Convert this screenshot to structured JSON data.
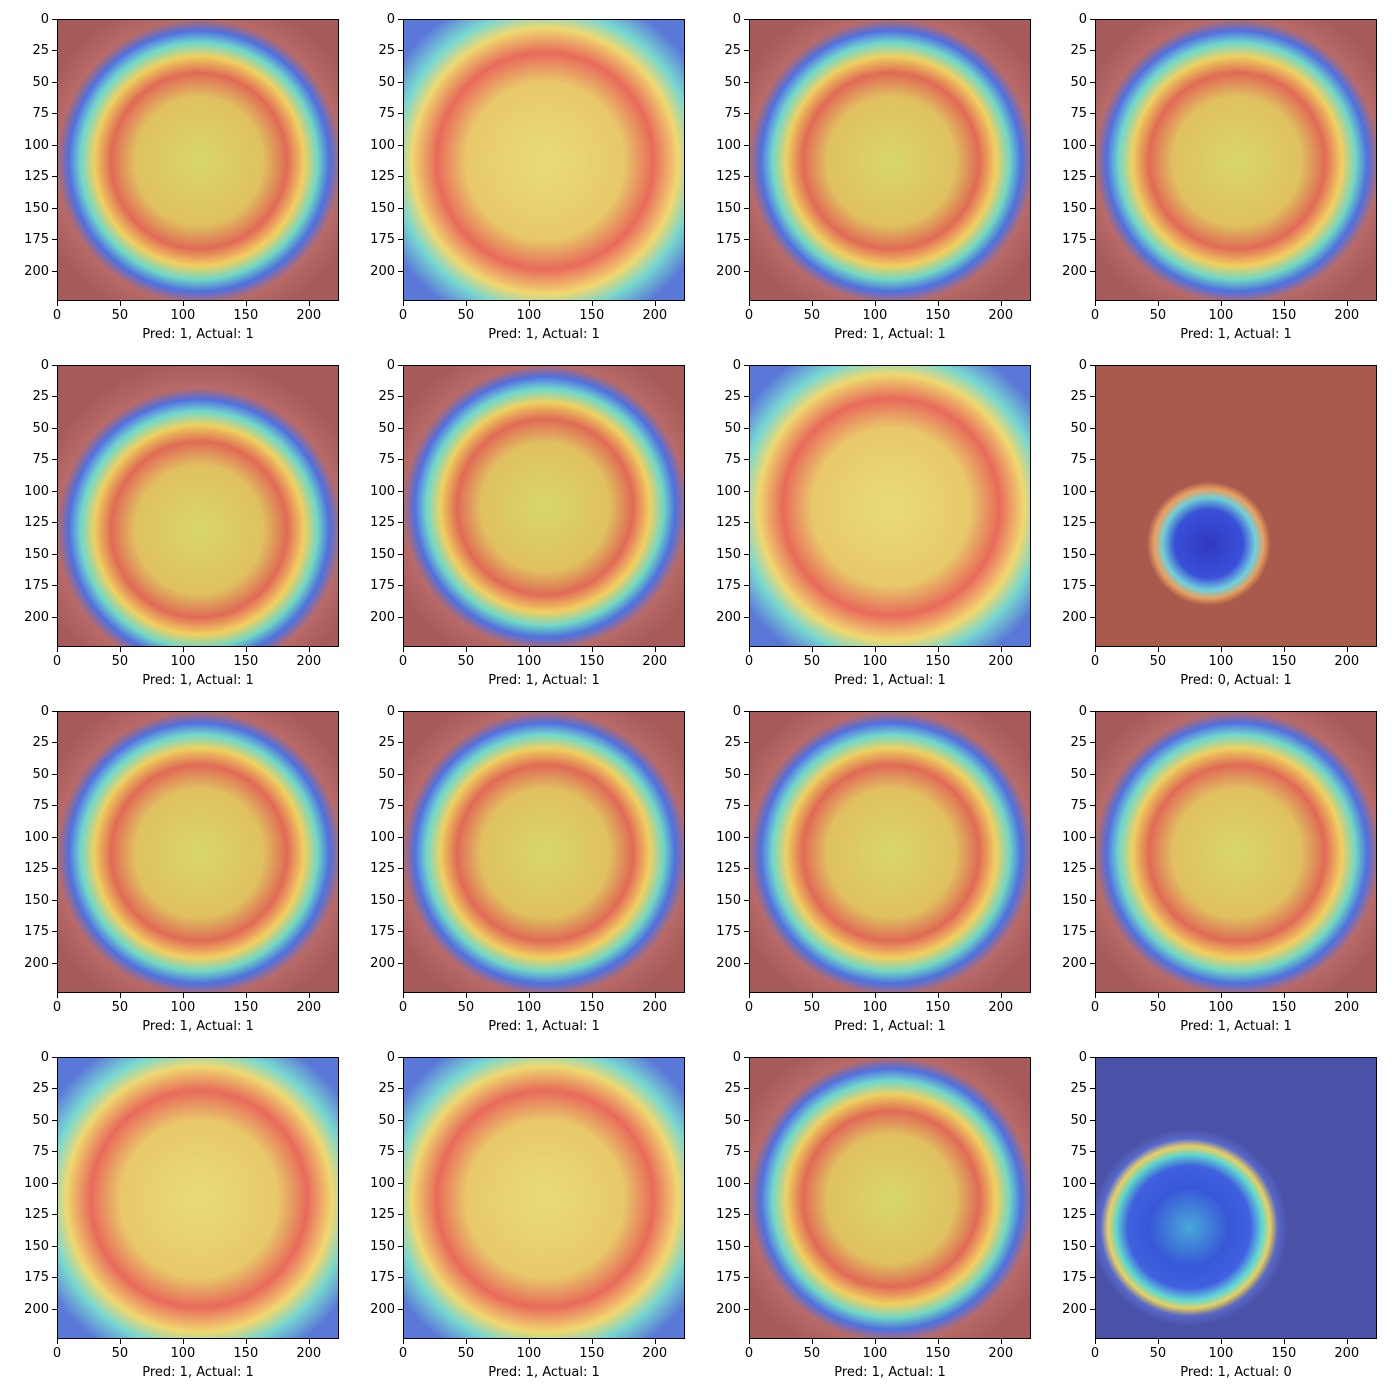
{
  "axes": {
    "xticks": [
      "0",
      "50",
      "100",
      "150",
      "200"
    ],
    "yticks": [
      "0",
      "25",
      "50",
      "75",
      "100",
      "125",
      "150",
      "175",
      "200"
    ]
  },
  "panels": [
    {
      "caption": "Pred: 1, Actual: 1",
      "theme": "ring"
    },
    {
      "caption": "Pred: 1, Actual: 1",
      "theme": "warm"
    },
    {
      "caption": "Pred: 1, Actual: 1",
      "theme": "ring"
    },
    {
      "caption": "Pred: 1, Actual: 1",
      "theme": "ring"
    },
    {
      "caption": "Pred: 1, Actual: 1",
      "theme": "ring-low"
    },
    {
      "caption": "Pred: 1, Actual: 1",
      "theme": "ring"
    },
    {
      "caption": "Pred: 1, Actual: 1",
      "theme": "warm"
    },
    {
      "caption": "Pred: 0, Actual: 1",
      "theme": "red-blue-center"
    },
    {
      "caption": "Pred: 1, Actual: 1",
      "theme": "ring"
    },
    {
      "caption": "Pred: 1, Actual: 1",
      "theme": "ring"
    },
    {
      "caption": "Pred: 1, Actual: 1",
      "theme": "ring"
    },
    {
      "caption": "Pred: 1, Actual: 1",
      "theme": "ring"
    },
    {
      "caption": "Pred: 1, Actual: 1",
      "theme": "warm"
    },
    {
      "caption": "Pred: 1, Actual: 1",
      "theme": "warm"
    },
    {
      "caption": "Pred: 1, Actual: 1",
      "theme": "ring"
    },
    {
      "caption": "Pred: 1, Actual: 0",
      "theme": "blue"
    }
  ]
}
